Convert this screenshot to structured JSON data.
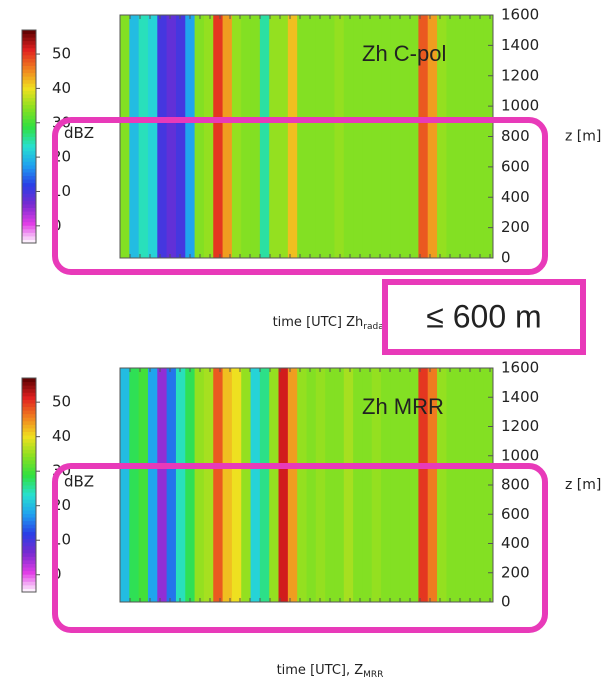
{
  "chart_data": [
    {
      "type": "heatmap",
      "label": "Zh C-pol",
      "xlabel": "time [UTC]  Zh",
      "xlabel_sub": "radar",
      "ylabel": "z [m]",
      "clabel": "dBZ",
      "ylim": [
        0,
        1600
      ],
      "yticks": [
        0,
        200,
        400,
        600,
        800,
        1000,
        1200,
        1400,
        1600
      ],
      "clim": [
        -5,
        57
      ],
      "cticks": [
        0,
        10,
        20,
        30,
        40,
        50
      ],
      "colormap": [
        "#ffffff",
        "#e23ee6",
        "#7a2ad0",
        "#2a3ee6",
        "#1fa0f0",
        "#28e0d0",
        "#30e040",
        "#8ae020",
        "#f0e020",
        "#f08020",
        "#e02020",
        "#5a0000"
      ],
      "values": [
        34,
        20,
        24,
        22,
        10,
        8,
        10,
        18,
        34,
        35,
        50,
        44,
        35,
        34,
        34,
        25,
        35,
        35,
        42,
        34,
        34,
        34,
        34,
        35,
        34,
        34,
        34,
        34,
        34,
        34,
        34,
        34,
        48,
        44,
        35,
        34,
        34,
        34,
        34,
        34
      ],
      "annotation": "≤ 600 m"
    },
    {
      "type": "heatmap",
      "label": "Zh MRR",
      "xlabel": "time [UTC],  Z",
      "xlabel_sub": "MRR",
      "ylabel": "z [m]",
      "clabel": "dBZ",
      "ylim": [
        0,
        1600
      ],
      "yticks": [
        0,
        200,
        400,
        600,
        800,
        1000,
        1200,
        1400,
        1600
      ],
      "clim": [
        -5,
        57
      ],
      "cticks": [
        0,
        10,
        20,
        30,
        40,
        50
      ],
      "colormap": [
        "#ffffff",
        "#e23ee6",
        "#7a2ad0",
        "#2a3ee6",
        "#1fa0f0",
        "#28e0d0",
        "#30e040",
        "#8ae020",
        "#f0e020",
        "#f08020",
        "#e02020",
        "#5a0000"
      ],
      "values": [
        20,
        28,
        30,
        18,
        5,
        15,
        24,
        28,
        35,
        36,
        48,
        42,
        40,
        35,
        22,
        26,
        35,
        52,
        44,
        35,
        34,
        35,
        34,
        34,
        36,
        34,
        34,
        35,
        34,
        34,
        34,
        34,
        50,
        46,
        35,
        34,
        34,
        34,
        34,
        34
      ]
    }
  ]
}
